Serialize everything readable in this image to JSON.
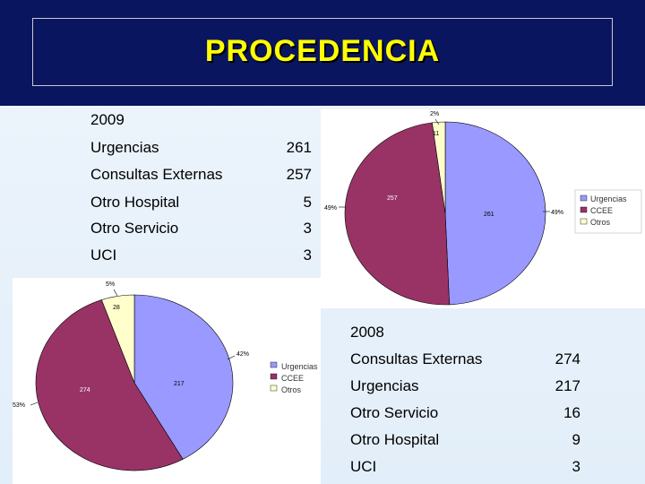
{
  "slide": {
    "title": "PROCEDENCIA"
  },
  "colors": {
    "urgencias": "#9999ff",
    "ccee": "#993366",
    "otros": "#ffffcc",
    "header": "#0a1560",
    "title": "#ffff00"
  },
  "table_2009": {
    "year": "2009",
    "rows": [
      {
        "label": "Urgencias",
        "value": "261"
      },
      {
        "label": "Consultas Externas",
        "value": "257"
      },
      {
        "label": "Otro Hospital",
        "value": "5"
      },
      {
        "label": "Otro Servicio",
        "value": "3"
      },
      {
        "label": "UCI",
        "value": "3"
      }
    ]
  },
  "table_2008": {
    "year": "2008",
    "rows": [
      {
        "label": "Consultas Externas",
        "value": "274"
      },
      {
        "label": "Urgencias",
        "value": "217"
      },
      {
        "label": "Otro Servicio",
        "value": "16"
      },
      {
        "label": "Otro Hospital",
        "value": "9"
      },
      {
        "label": "UCI",
        "value": "3"
      }
    ]
  },
  "chart_data": [
    {
      "type": "pie",
      "title": "",
      "categories": [
        "Urgencias",
        "CCEE",
        "Otros"
      ],
      "values": [
        261,
        257,
        11
      ],
      "value_labels": [
        "261",
        "257",
        "11"
      ],
      "percent_labels": [
        "49%",
        "49%",
        "2%"
      ],
      "legend_position": "right"
    },
    {
      "type": "pie",
      "title": "",
      "categories": [
        "Urgencias",
        "CCEE",
        "Otros"
      ],
      "values": [
        217,
        274,
        28
      ],
      "value_labels": [
        "217",
        "274",
        "28"
      ],
      "percent_labels": [
        "42%",
        "53%",
        "5%"
      ],
      "legend_position": "right"
    }
  ]
}
